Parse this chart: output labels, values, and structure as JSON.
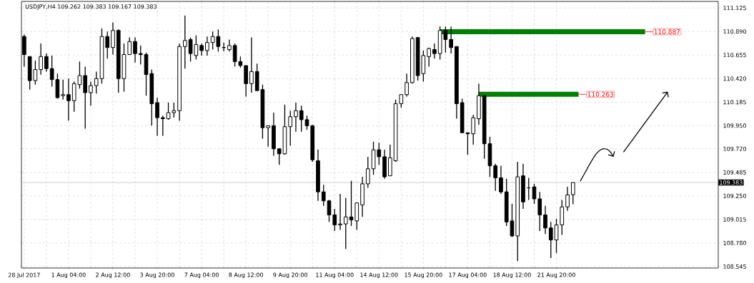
{
  "chart_data": {
    "type": "candlestick",
    "title": "USDJPY,H4  109.262 109.383 109.167 109.383",
    "categories": [
      "28 Jul 2017",
      null,
      null,
      null,
      null,
      null,
      null,
      null,
      "1 Aug 04:00",
      null,
      null,
      null,
      null,
      null,
      null,
      null,
      "2 Aug 12:00",
      null,
      null,
      null,
      null,
      null,
      null,
      null,
      "3 Aug 20:00",
      null,
      null,
      null,
      null,
      null,
      null,
      null,
      "7 Aug 04:00",
      null,
      null,
      null,
      null,
      null,
      null,
      null,
      "8 Aug 12:00",
      null,
      null,
      null,
      null,
      null,
      null,
      null,
      "9 Aug 20:00",
      null,
      null,
      null,
      null,
      null,
      null,
      null,
      "11 Aug 04:00",
      null,
      null,
      null,
      null,
      null,
      null,
      null,
      "14 Aug 12:00",
      null,
      null,
      null,
      null,
      null,
      null,
      null,
      "15 Aug 20:00",
      null,
      null,
      null,
      null,
      null,
      null,
      null,
      "17 Aug 04:00",
      null,
      null,
      null,
      null,
      null,
      null,
      null,
      "18 Aug 12:00",
      null,
      null,
      null,
      null,
      null,
      null,
      null,
      "21 Aug 20:00",
      null,
      null,
      null,
      null,
      null,
      null,
      null,
      null,
      null,
      null,
      null,
      null,
      null,
      null,
      null,
      null,
      null,
      null,
      null,
      null,
      null,
      null,
      null,
      null,
      null,
      null,
      null,
      null,
      null
    ],
    "ohlc": [
      [
        110.84,
        110.86,
        110.54,
        110.66
      ],
      [
        110.64,
        110.64,
        110.31,
        110.4
      ],
      [
        110.4,
        110.6,
        110.36,
        110.51
      ],
      [
        110.51,
        110.77,
        110.46,
        110.64
      ],
      [
        110.64,
        110.67,
        110.49,
        110.52
      ],
      [
        110.52,
        110.65,
        110.34,
        110.41
      ],
      [
        110.41,
        110.47,
        110.22,
        110.23
      ],
      [
        110.25,
        110.41,
        110.21,
        110.26
      ],
      [
        110.26,
        110.42,
        110.0,
        110.2
      ],
      [
        110.2,
        110.39,
        110.09,
        110.37
      ],
      [
        110.36,
        110.59,
        110.32,
        110.45
      ],
      [
        110.45,
        110.54,
        109.92,
        110.28
      ],
      [
        110.28,
        110.39,
        110.15,
        110.35
      ],
      [
        110.35,
        110.49,
        110.27,
        110.42
      ],
      [
        110.42,
        110.92,
        110.37,
        110.84
      ],
      [
        110.84,
        110.89,
        110.62,
        110.73
      ],
      [
        110.73,
        110.98,
        110.66,
        110.9
      ],
      [
        110.9,
        110.91,
        110.28,
        110.42
      ],
      [
        110.42,
        110.77,
        110.29,
        110.66
      ],
      [
        110.66,
        110.83,
        110.66,
        110.79
      ],
      [
        110.79,
        110.83,
        110.58,
        110.67
      ],
      [
        110.67,
        110.75,
        110.56,
        110.66
      ],
      [
        110.66,
        110.68,
        110.25,
        110.46
      ],
      [
        110.47,
        110.51,
        109.95,
        110.17
      ],
      [
        110.18,
        110.23,
        109.85,
        110.03
      ],
      [
        110.03,
        110.05,
        109.85,
        110.02
      ],
      [
        110.02,
        110.18,
        110.01,
        110.08
      ],
      [
        110.08,
        110.18,
        110.03,
        110.1
      ],
      [
        110.1,
        110.77,
        110.0,
        110.74
      ],
      [
        110.74,
        111.05,
        110.52,
        110.8
      ],
      [
        110.81,
        110.83,
        110.59,
        110.67
      ],
      [
        110.65,
        110.85,
        110.61,
        110.76
      ],
      [
        110.75,
        110.77,
        110.65,
        110.7
      ],
      [
        110.7,
        110.84,
        110.65,
        110.78
      ],
      [
        110.78,
        110.89,
        110.71,
        110.84
      ],
      [
        110.84,
        110.91,
        110.69,
        110.74
      ],
      [
        110.73,
        110.78,
        110.69,
        110.73
      ],
      [
        110.71,
        110.81,
        110.69,
        110.75
      ],
      [
        110.75,
        110.77,
        110.54,
        110.59
      ],
      [
        110.59,
        110.64,
        110.53,
        110.55
      ],
      [
        110.55,
        110.55,
        110.24,
        110.37
      ],
      [
        110.37,
        110.83,
        110.28,
        110.49
      ],
      [
        110.49,
        110.57,
        110.3,
        110.3
      ],
      [
        110.31,
        110.36,
        109.82,
        109.93
      ],
      [
        109.93,
        109.95,
        109.74,
        109.95
      ],
      [
        109.95,
        110.08,
        109.65,
        109.72
      ],
      [
        109.72,
        109.72,
        109.56,
        109.67
      ],
      [
        109.67,
        110.16,
        109.66,
        109.94
      ],
      [
        109.94,
        110.1,
        109.75,
        110.04
      ],
      [
        110.04,
        110.18,
        109.89,
        110.1
      ],
      [
        110.1,
        110.15,
        109.89,
        110.01
      ],
      [
        110.01,
        110.05,
        109.91,
        109.95
      ],
      [
        109.95,
        109.96,
        109.59,
        109.61
      ],
      [
        109.6,
        109.71,
        109.2,
        109.29
      ],
      [
        109.29,
        109.36,
        109.15,
        109.2
      ],
      [
        109.2,
        109.21,
        108.99,
        109.06
      ],
      [
        109.06,
        109.12,
        108.9,
        108.96
      ],
      [
        108.96,
        109.27,
        108.91,
        108.97
      ],
      [
        108.97,
        109.23,
        108.72,
        109.04
      ],
      [
        109.04,
        109.4,
        108.95,
        109.01
      ],
      [
        109.0,
        109.18,
        108.91,
        109.18
      ],
      [
        109.16,
        109.44,
        109.04,
        109.37
      ],
      [
        109.37,
        109.64,
        109.33,
        109.52
      ],
      [
        109.52,
        109.79,
        109.46,
        109.71
      ],
      [
        109.71,
        109.78,
        109.56,
        109.64
      ],
      [
        109.64,
        109.71,
        109.42,
        109.44
      ],
      [
        109.45,
        109.76,
        109.45,
        109.63
      ],
      [
        109.6,
        110.21,
        109.59,
        110.17
      ],
      [
        110.17,
        110.26,
        110.13,
        110.26
      ],
      [
        110.26,
        110.47,
        110.24,
        110.38
      ],
      [
        110.38,
        110.84,
        110.37,
        110.82
      ],
      [
        110.83,
        110.83,
        110.4,
        110.45
      ],
      [
        110.47,
        110.7,
        110.39,
        110.65
      ],
      [
        110.64,
        110.73,
        110.54,
        110.72
      ],
      [
        110.71,
        110.77,
        110.62,
        110.67
      ],
      [
        110.67,
        110.94,
        110.61,
        110.9
      ],
      [
        110.9,
        110.94,
        110.68,
        110.81
      ],
      [
        110.81,
        110.94,
        110.67,
        110.73
      ],
      [
        110.74,
        110.74,
        110.02,
        110.17
      ],
      [
        110.18,
        110.22,
        109.88,
        109.88
      ],
      [
        109.88,
        109.88,
        109.66,
        109.87
      ],
      [
        109.87,
        110.06,
        109.76,
        110.03
      ],
      [
        110.02,
        110.37,
        109.96,
        110.25
      ],
      [
        110.25,
        110.25,
        109.62,
        109.77
      ],
      [
        109.77,
        109.84,
        109.44,
        109.55
      ],
      [
        109.55,
        109.57,
        109.3,
        109.43
      ],
      [
        109.43,
        109.55,
        109.27,
        109.29
      ],
      [
        109.29,
        109.42,
        108.95,
        108.99
      ],
      [
        109.0,
        109.17,
        108.84,
        108.85
      ],
      [
        108.85,
        109.59,
        108.6,
        109.44
      ],
      [
        109.45,
        109.57,
        109.12,
        109.19
      ],
      [
        109.33,
        109.43,
        109.21,
        109.33
      ],
      [
        109.34,
        109.37,
        109.17,
        109.22
      ],
      [
        109.22,
        109.29,
        108.9,
        109.06
      ],
      [
        109.06,
        109.15,
        108.87,
        108.93
      ],
      [
        108.93,
        108.99,
        108.63,
        108.81
      ],
      [
        108.81,
        109.02,
        108.68,
        108.96
      ],
      [
        108.96,
        109.21,
        108.86,
        109.14
      ],
      [
        109.14,
        109.34,
        109.1,
        109.26
      ],
      [
        109.262,
        109.383,
        109.167,
        109.383
      ],
      null,
      null,
      null,
      null,
      null,
      null,
      null,
      null,
      null,
      null,
      null,
      null,
      null,
      null,
      null,
      null,
      null,
      null,
      null,
      null,
      null,
      null,
      null,
      null,
      null,
      null
    ],
    "ylim": [
      108.53,
      111.19
    ],
    "yticks": [
      111.125,
      {
        "value": 110.89,
        "label": "110.890"
      },
      110.655,
      {
        "value": 110.42,
        "label": "110.420"
      },
      110.185,
      {
        "value": 109.95,
        "label": "109.950"
      },
      {
        "value": 109.72,
        "label": "109.720"
      },
      109.485,
      {
        "value": 109.25,
        "label": "109.250"
      },
      109.015,
      {
        "value": 108.78,
        "label": "108.780"
      },
      108.545
    ],
    "grid": true,
    "ref_lines": [
      {
        "axis": "y",
        "value": 109.383,
        "label": "109.383",
        "color": "#c0c0c0"
      }
    ],
    "series": [
      {
        "type": "line",
        "color": "#008000",
        "values": [
          null,
          null,
          null,
          null,
          null,
          null,
          null,
          null,
          null,
          null,
          null,
          null,
          null,
          null,
          null,
          null,
          null,
          null,
          null,
          null,
          null,
          null,
          null,
          null,
          null,
          null,
          null,
          null,
          null,
          null,
          null,
          null,
          null,
          null,
          null,
          null,
          null,
          null,
          null,
          null,
          null,
          null,
          null,
          null,
          null,
          null,
          null,
          null,
          null,
          null,
          null,
          null,
          null,
          null,
          null,
          null,
          null,
          null,
          null,
          null,
          null,
          null,
          null,
          null,
          null,
          null,
          null,
          null,
          null,
          null,
          null,
          null,
          null,
          null,
          null,
          110.887,
          110.887,
          110.887,
          110.887,
          110.887,
          110.887,
          110.887,
          110.887,
          110.887,
          110.887,
          110.887,
          110.887,
          110.887,
          110.887,
          110.887,
          110.887,
          110.887,
          110.887,
          110.887,
          110.887,
          110.887,
          110.887,
          110.887,
          110.887,
          110.887,
          110.887,
          110.887,
          110.887,
          110.887,
          110.887,
          110.887,
          110.887,
          110.887,
          110.887,
          110.887,
          110.887,
          110.887,
          110.887,
          null,
          null,
          null,
          null,
          null,
          null,
          null,
          null,
          null,
          null,
          null,
          null,
          null
        ],
        "value_labels": [
          null,
          null,
          null,
          null,
          null,
          null,
          null,
          null,
          null,
          null,
          null,
          null,
          null,
          null,
          null,
          null,
          null,
          null,
          null,
          null,
          null,
          null,
          null,
          null,
          null,
          null,
          null,
          null,
          null,
          null,
          null,
          null,
          null,
          null,
          null,
          null,
          null,
          null,
          null,
          null,
          null,
          null,
          null,
          null,
          null,
          null,
          null,
          null,
          null,
          null,
          null,
          null,
          null,
          null,
          null,
          null,
          null,
          null,
          null,
          null,
          null,
          null,
          null,
          null,
          null,
          null,
          null,
          null,
          null,
          null,
          null,
          null,
          null,
          null,
          null,
          null,
          null,
          null,
          null,
          null,
          null,
          null,
          null,
          null,
          null,
          null,
          null,
          null,
          null,
          null,
          null,
          null,
          null,
          null,
          null,
          null,
          null,
          null,
          null,
          null,
          null,
          null,
          null,
          null,
          null,
          null,
          null,
          null,
          null,
          null,
          null,
          null,
          "110.887",
          null,
          null,
          null,
          null,
          null,
          null,
          null,
          null,
          null,
          null,
          null,
          null,
          null
        ]
      },
      {
        "type": "line",
        "color": "#008000",
        "values": [
          null,
          null,
          null,
          null,
          null,
          null,
          null,
          null,
          null,
          null,
          null,
          null,
          null,
          null,
          null,
          null,
          null,
          null,
          null,
          null,
          null,
          null,
          null,
          null,
          null,
          null,
          null,
          null,
          null,
          null,
          null,
          null,
          null,
          null,
          null,
          null,
          null,
          null,
          null,
          null,
          null,
          null,
          null,
          null,
          null,
          null,
          null,
          null,
          null,
          null,
          null,
          null,
          null,
          null,
          null,
          null,
          null,
          null,
          null,
          null,
          null,
          null,
          null,
          null,
          null,
          null,
          null,
          null,
          null,
          null,
          null,
          null,
          null,
          null,
          null,
          null,
          null,
          null,
          null,
          null,
          null,
          null,
          110.263,
          110.263,
          110.263,
          110.263,
          110.263,
          110.263,
          110.263,
          110.263,
          110.263,
          110.263,
          110.263,
          110.263,
          110.263,
          110.263,
          110.263,
          110.263,
          110.263,
          110.263,
          110.263,
          null,
          null,
          null,
          null,
          null,
          null,
          null,
          null,
          null,
          null,
          null,
          null,
          null,
          null,
          null,
          null,
          null,
          null,
          null,
          null,
          null,
          null,
          null,
          null,
          null
        ],
        "value_labels": [
          null,
          null,
          null,
          null,
          null,
          null,
          null,
          null,
          null,
          null,
          null,
          null,
          null,
          null,
          null,
          null,
          null,
          null,
          null,
          null,
          null,
          null,
          null,
          null,
          null,
          null,
          null,
          null,
          null,
          null,
          null,
          null,
          null,
          null,
          null,
          null,
          null,
          null,
          null,
          null,
          null,
          null,
          null,
          null,
          null,
          null,
          null,
          null,
          null,
          null,
          null,
          null,
          null,
          null,
          null,
          null,
          null,
          null,
          null,
          null,
          null,
          null,
          null,
          null,
          null,
          null,
          null,
          null,
          null,
          null,
          null,
          null,
          null,
          null,
          null,
          null,
          null,
          null,
          null,
          null,
          null,
          null,
          null,
          null,
          null,
          null,
          null,
          null,
          null,
          null,
          null,
          null,
          null,
          null,
          null,
          null,
          null,
          null,
          null,
          null,
          "110.263",
          null,
          null,
          null,
          null,
          null,
          null,
          null,
          null,
          null,
          null,
          null,
          null,
          null,
          null,
          null,
          null,
          null,
          null,
          null,
          null,
          null,
          null,
          null,
          null,
          null
        ]
      }
    ]
  }
}
